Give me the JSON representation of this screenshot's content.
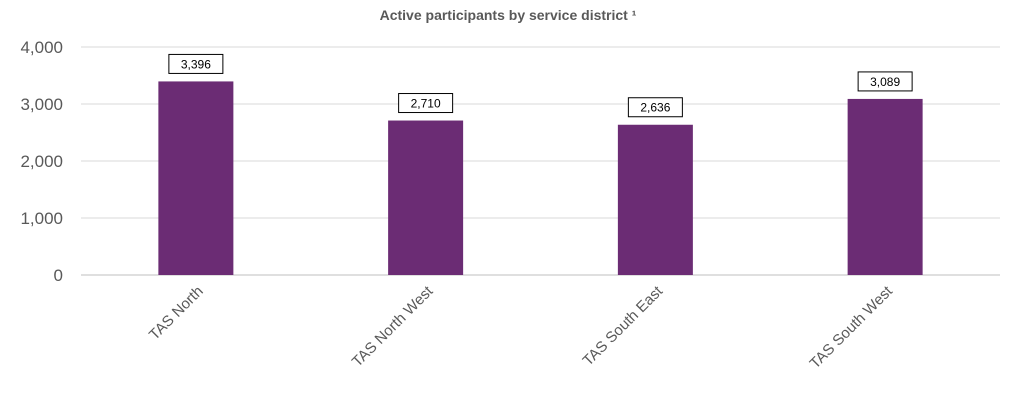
{
  "chart_data": {
    "type": "bar",
    "title": "Active participants by service district ¹",
    "xlabel": "",
    "ylabel": "",
    "categories": [
      "TAS North",
      "TAS North West",
      "TAS South East",
      "TAS South West"
    ],
    "values": [
      3396,
      2710,
      2636,
      3089
    ],
    "data_labels": [
      "3,396",
      "2,710",
      "2,636",
      "3,089"
    ],
    "ylim": [
      0,
      4000
    ],
    "yticks": [
      0,
      1000,
      2000,
      3000,
      4000
    ],
    "ytick_labels": [
      "0",
      "1,000",
      "2,000",
      "3,000",
      "4,000"
    ],
    "grid": true,
    "legend": "none",
    "bar_color": "#6b2c74"
  }
}
